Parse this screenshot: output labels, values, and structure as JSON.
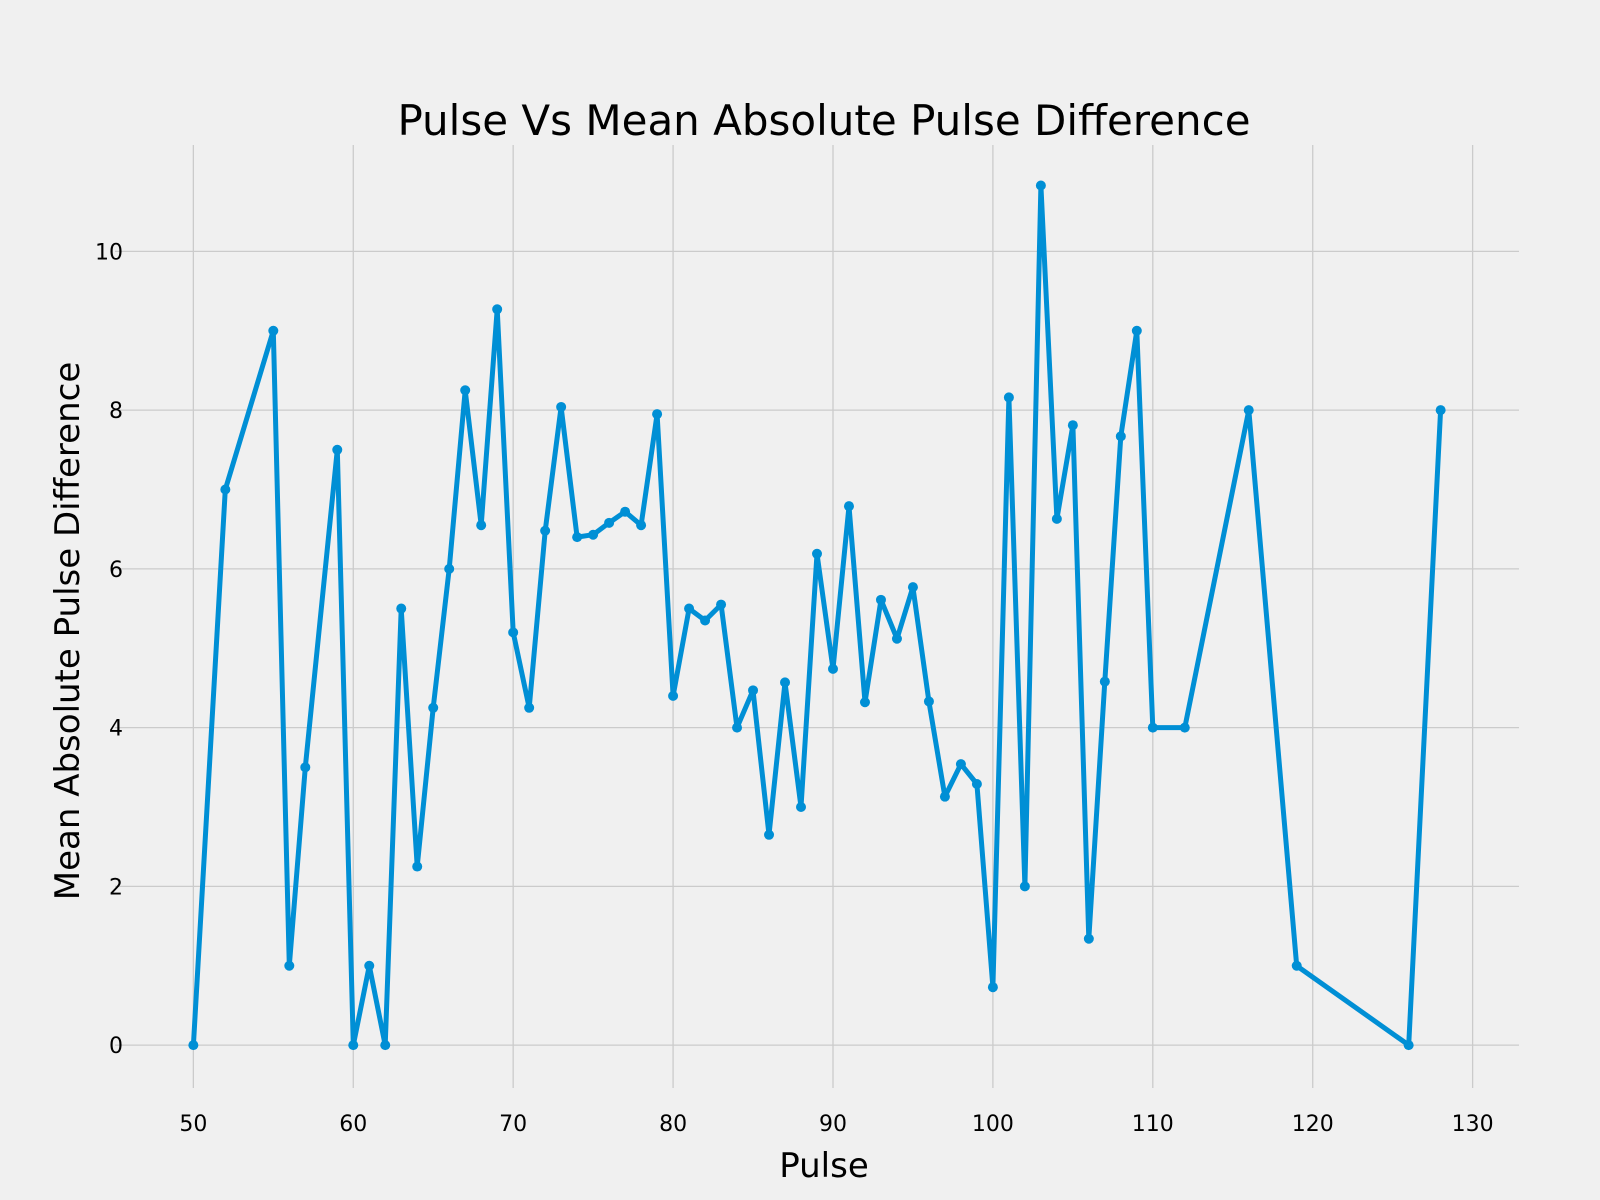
{
  "chart_data": {
    "type": "line",
    "title": "Pulse Vs Mean Absolute Pulse Difference",
    "xlabel": "Pulse",
    "ylabel": "Mean Absolute Pulse Difference",
    "xlim": [
      45.1,
      132.9
    ],
    "ylim": [
      -0.54,
      11.34
    ],
    "x_ticks": [
      50,
      60,
      70,
      80,
      90,
      100,
      110,
      120,
      130
    ],
    "y_ticks": [
      0,
      2,
      4,
      6,
      8,
      10
    ],
    "grid": true,
    "series": [
      {
        "color": "#008fd5",
        "marker": "circle",
        "points": [
          [
            50,
            0
          ],
          [
            52,
            7.0
          ],
          [
            55,
            9.0
          ],
          [
            56,
            1.0
          ],
          [
            57,
            3.5
          ],
          [
            59,
            7.5
          ],
          [
            60,
            0
          ],
          [
            61,
            1.0
          ],
          [
            62,
            0
          ],
          [
            63,
            5.5
          ],
          [
            64,
            2.25
          ],
          [
            65,
            4.25
          ],
          [
            66,
            6.0
          ],
          [
            67,
            8.25
          ],
          [
            68,
            6.55
          ],
          [
            69,
            9.27
          ],
          [
            70,
            5.2
          ],
          [
            71,
            4.25
          ],
          [
            72,
            6.48
          ],
          [
            73,
            8.04
          ],
          [
            74,
            6.4
          ],
          [
            75,
            6.43
          ],
          [
            76,
            6.58
          ],
          [
            77,
            6.72
          ],
          [
            78,
            6.55
          ],
          [
            79,
            7.95
          ],
          [
            80,
            4.4
          ],
          [
            81,
            5.5
          ],
          [
            82,
            5.35
          ],
          [
            83,
            5.55
          ],
          [
            84,
            4.0
          ],
          [
            85,
            4.47
          ],
          [
            86,
            2.65
          ],
          [
            87,
            4.57
          ],
          [
            88,
            3.0
          ],
          [
            89,
            6.19
          ],
          [
            90,
            4.74
          ],
          [
            91,
            6.79
          ],
          [
            92,
            4.32
          ],
          [
            93,
            5.61
          ],
          [
            94,
            5.12
          ],
          [
            95,
            5.77
          ],
          [
            96,
            4.33
          ],
          [
            97,
            3.13
          ],
          [
            98,
            3.54
          ],
          [
            99,
            3.29
          ],
          [
            100,
            0.73
          ],
          [
            101,
            8.16
          ],
          [
            102,
            2.0
          ],
          [
            103,
            10.83
          ],
          [
            104,
            6.63
          ],
          [
            105,
            7.81
          ],
          [
            106,
            1.34
          ],
          [
            107,
            4.58
          ],
          [
            108,
            7.67
          ],
          [
            109,
            9.0
          ],
          [
            110,
            4.0
          ],
          [
            112,
            4.0
          ],
          [
            116,
            8.0
          ],
          [
            119,
            1.0
          ],
          [
            126,
            0
          ],
          [
            128,
            8.0
          ]
        ]
      }
    ]
  }
}
